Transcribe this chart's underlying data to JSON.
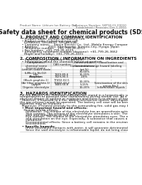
{
  "header_left": "Product Name: Lithium Ion Battery Cell",
  "header_right_line1": "Substance Number: 5KP18-01-00010",
  "header_right_line2": "Established / Revision: Dec.1.2010",
  "title": "Safety data sheet for chemical products (SDS)",
  "section1_title": "1. PRODUCT AND COMPANY IDENTIFICATION",
  "section1_lines": [
    "  • Product name: Lithium Ion Battery Cell",
    "  • Product code: Cylindrical-type cell",
    "    (IVR86600, IVR18650, IVR18650A)",
    "  • Company name:    Sanyo Electric Co., Ltd., Mobile Energy Company",
    "  • Address:          2001. Kamikosaka, Sumoto-City, Hyogo, Japan",
    "  • Telephone number:   +81-799-26-4111",
    "  • Fax number:  +81-799-26-4123",
    "  • Emergency telephone number (daytime): +81-799-26-3662",
    "    (Night and holiday): +81-799-26-4101"
  ],
  "section2_title": "2. COMPOSITION / INFORMATION ON INGREDIENTS",
  "section2_intro": "  • Substance or preparation: Preparation",
  "section2_sub": "  • Information about the chemical nature of product:",
  "section3_title": "3. HAZARDS IDENTIFICATION",
  "section3_lines": [
    "For the battery cell, chemical materials are stored in a hermetically sealed metal case, designed to withstand",
    "temperatures or pressure-time combinations during normal use. As a result, during normal use, there is no",
    "physical danger of ignition or explosion and there is no danger of hazardous materials leakage.",
    "  However, if exposed to a fire, added mechanical shocks, decomposes, which electro-chemical reaction may cause",
    "the gas release cannot be operated. The battery cell case will be breached of fire-patterns. Hazardous",
    "materials may be released.",
    "  Moreover, if heated strongly by the surrounding fire, solid gas may be emitted."
  ],
  "section3_bullet1": "  • Most important hazard and effects:",
  "section3_human": "    Human health effects:",
  "section3_human_lines": [
    "      Inhalation: The release of the electrolyte has an anaesthesia action and stimulates in respiratory tract.",
    "      Skin contact: The release of the electrolyte stimulates a skin. The electrolyte skin contact causes a",
    "      sore and stimulation on the skin.",
    "      Eye contact: The release of the electrolyte stimulates eyes. The electrolyte eye contact causes a sore",
    "      and stimulation on the eye. Especially, a substance that causes a strong inflammation of the eye is",
    "      contained.",
    "      Environmental effects: Since a battery cell remains in the environment, do not throw out it into the",
    "      environment."
  ],
  "section3_bullet2": "  • Specific hazards:",
  "section3_specific_lines": [
    "      If the electrolyte contacts with water, it will generate detrimental hydrogen fluoride.",
    "      Since the said electrolyte is inflammable liquid, do not bring close to fire."
  ],
  "bg_color": "#ffffff",
  "text_color": "#111111",
  "gray_color": "#666666",
  "line_color": "#bbbbbb",
  "table_line_color": "#999999"
}
